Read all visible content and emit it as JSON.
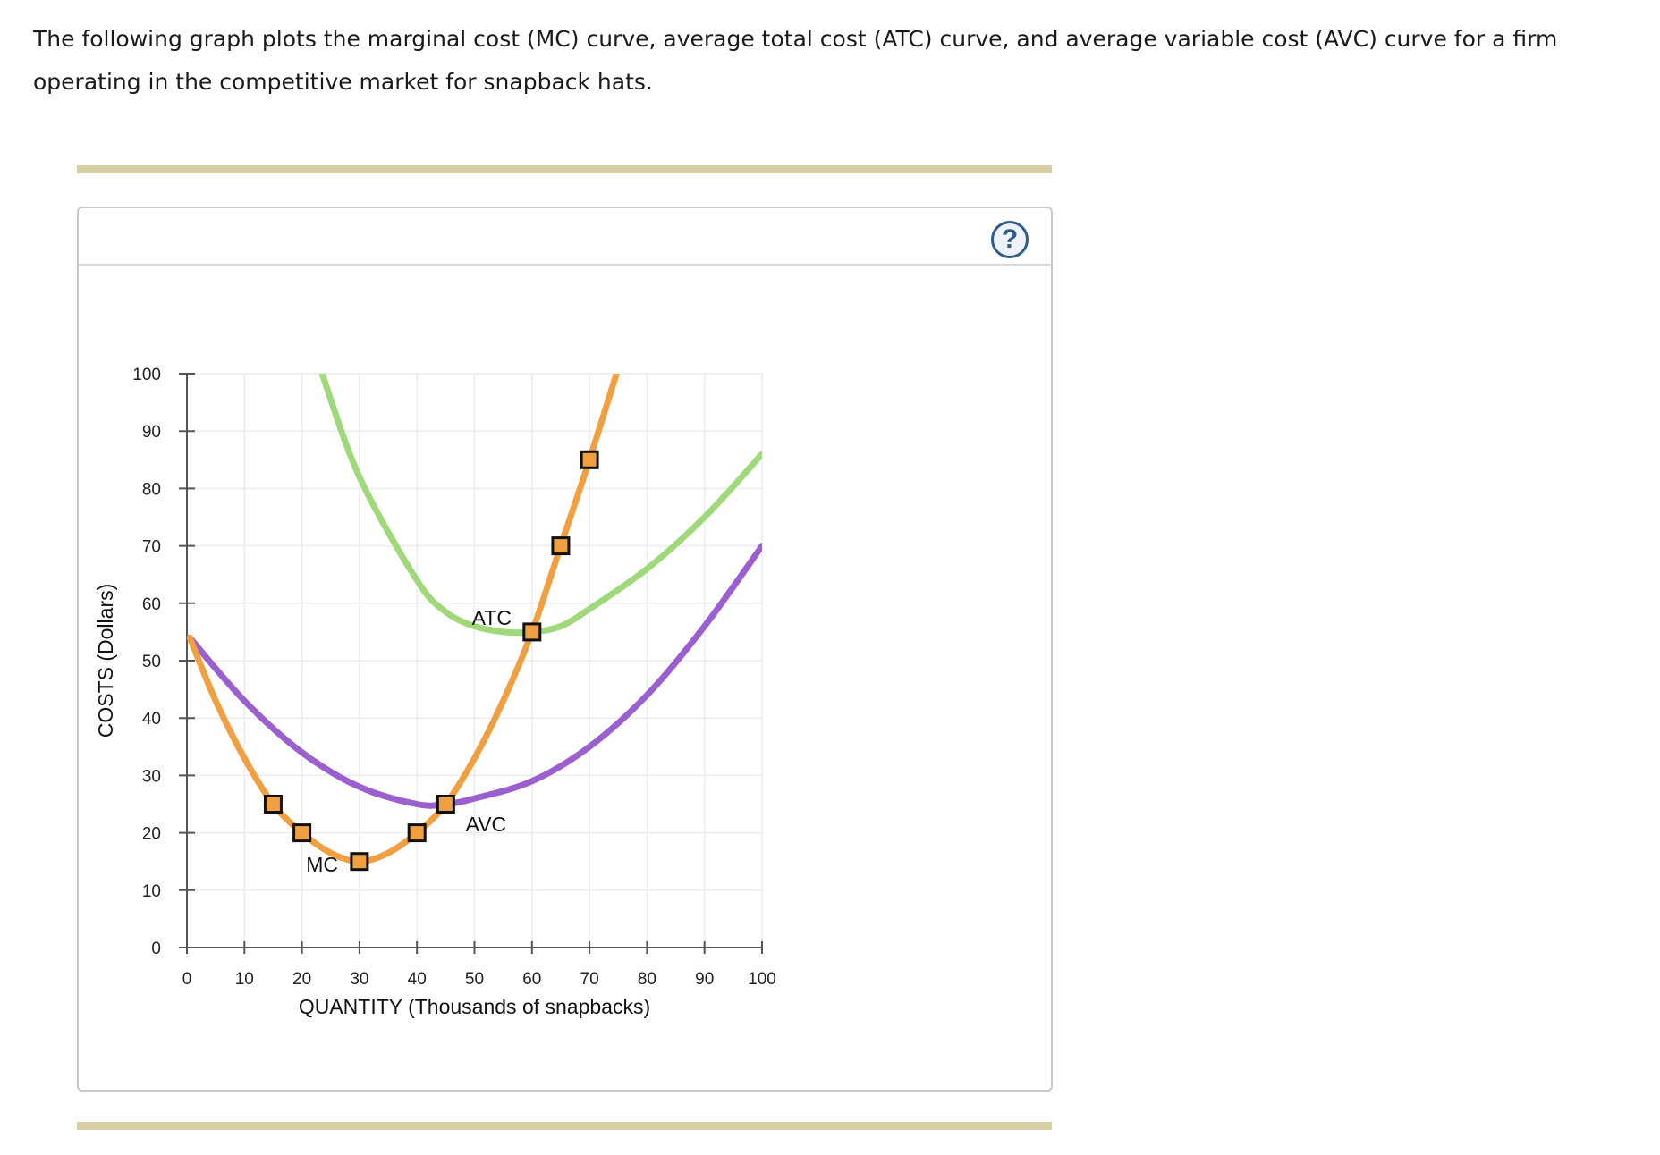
{
  "question": {
    "text": "The following graph plots the marginal cost (MC) curve, average total cost (ATC) curve, and average variable cost (AVC) curve for a firm operating in the competitive market for snapback hats."
  },
  "help_button": {
    "label": "?",
    "icon": "help-question-icon"
  },
  "colors": {
    "mc": "#f0a040",
    "atc": "#9fd97a",
    "avc": "#9b5fcf",
    "grid": "#ececec",
    "axis": "#555555",
    "marker_fill": "#f0a040",
    "marker_stroke": "#111111"
  },
  "chart_data": {
    "type": "line",
    "xlabel": "QUANTITY (Thousands of snapbacks)",
    "ylabel": "COSTS (Dollars)",
    "xlim": [
      0,
      100
    ],
    "ylim": [
      0,
      100
    ],
    "xticks": [
      0,
      10,
      20,
      30,
      40,
      50,
      60,
      70,
      80,
      90,
      100
    ],
    "yticks": [
      0,
      10,
      20,
      30,
      40,
      50,
      60,
      70,
      80,
      90,
      100
    ],
    "grid": true,
    "series": [
      {
        "name": "MC",
        "color": "#f0a040",
        "x": [
          0.5,
          5,
          10,
          15,
          20,
          25,
          30,
          35,
          40,
          45,
          50,
          55,
          60,
          65,
          70,
          75
        ],
        "y": [
          54,
          43,
          33,
          25,
          20,
          16.5,
          15,
          16.5,
          20,
          25,
          33,
          43,
          55,
          70,
          85,
          101
        ]
      },
      {
        "name": "ATC",
        "color": "#9fd97a",
        "x": [
          23.5,
          30,
          40,
          45,
          50,
          55,
          60,
          65,
          70,
          80,
          90,
          100
        ],
        "y": [
          100,
          82,
          64,
          58.5,
          56,
          55,
          55,
          56,
          59,
          66,
          75,
          86
        ]
      },
      {
        "name": "AVC",
        "color": "#9b5fcf",
        "x": [
          0.5,
          10,
          20,
          30,
          40,
          45,
          50,
          60,
          70,
          80,
          90,
          100
        ],
        "y": [
          54,
          43,
          34,
          28,
          25,
          25,
          26,
          29,
          35,
          44,
          56,
          70
        ]
      }
    ],
    "points": [
      {
        "series": "MC",
        "x": 15,
        "y": 25
      },
      {
        "series": "MC",
        "x": 20,
        "y": 20
      },
      {
        "series": "MC",
        "x": 30,
        "y": 15
      },
      {
        "series": "MC",
        "x": 40,
        "y": 20
      },
      {
        "series": "MC",
        "x": 45,
        "y": 25
      },
      {
        "series": "MC",
        "x": 60,
        "y": 55
      },
      {
        "series": "MC",
        "x": 65,
        "y": 70
      },
      {
        "series": "MC",
        "x": 70,
        "y": 85
      }
    ],
    "annotations": [
      {
        "text": "MC",
        "x": 23.5,
        "y": 14.5
      },
      {
        "text": "ATC",
        "x": 53,
        "y": 57.5
      },
      {
        "text": "AVC",
        "x": 52,
        "y": 21.5
      }
    ]
  }
}
